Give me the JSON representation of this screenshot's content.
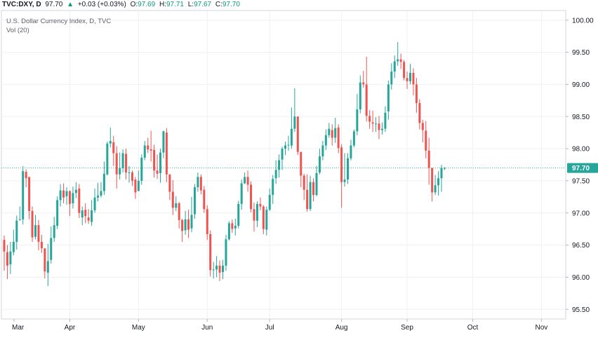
{
  "header": {
    "symbol": "TVC:DXY, D",
    "last": "97.70",
    "arrow": "▲",
    "change": "+0.03 (+0.03%)",
    "o_label": "O:",
    "o_value": "97.69",
    "h_label": "H:",
    "h_value": "97.71",
    "l_label": "L:",
    "l_value": "97.67",
    "c_label": "C:",
    "c_value": "97.70"
  },
  "legend": {
    "title": "U.S. Dollar Currency Index, D, TVC",
    "volume": "Vol (20)"
  },
  "colors": {
    "up": "#26a69a",
    "down": "#ef5350",
    "price_line": "#26a69a",
    "grid": "#eef0f3",
    "text": "#131722"
  },
  "chart_data": {
    "type": "candlestick",
    "title": "U.S. Dollar Currency Index, D, TVC",
    "ylim": [
      95.35,
      100.15
    ],
    "y_ticks": [
      "95.50",
      "96.00",
      "96.50",
      "97.00",
      "97.50",
      "98.00",
      "98.50",
      "99.00",
      "99.50",
      "100.00"
    ],
    "x_ticks": [
      {
        "label": "Mar",
        "index": 0
      },
      {
        "label": "Apr",
        "index": 21
      },
      {
        "label": "May",
        "index": 43
      },
      {
        "label": "Jun",
        "index": 65
      },
      {
        "label": "Jul",
        "index": 85
      },
      {
        "label": "Aug",
        "index": 108
      },
      {
        "label": "Sep",
        "index": 129
      },
      {
        "label": "Oct",
        "index": 150
      },
      {
        "label": "Nov",
        "index": 172
      }
    ],
    "current_price": "97.70",
    "candles": [
      [
        96.58,
        96.4,
        96.65,
        96.1
      ],
      [
        96.39,
        96.18,
        96.5,
        95.97
      ],
      [
        96.2,
        96.4,
        96.55,
        96.05
      ],
      [
        96.39,
        96.55,
        96.74,
        96.34
      ],
      [
        96.55,
        96.88,
        96.96,
        96.43
      ],
      [
        96.89,
        96.9,
        97.1,
        96.88
      ],
      [
        96.9,
        97.65,
        97.73,
        96.82
      ],
      [
        97.64,
        97.54,
        97.68,
        97.4
      ],
      [
        97.56,
        97.03,
        97.12,
        96.9
      ],
      [
        97.03,
        96.62,
        97.1,
        96.55
      ],
      [
        96.63,
        96.81,
        96.97,
        96.59
      ],
      [
        96.81,
        96.55,
        96.89,
        96.42
      ],
      [
        96.55,
        96.45,
        96.66,
        96.38
      ],
      [
        96.45,
        96.09,
        96.24,
        95.98
      ],
      [
        96.07,
        96.25,
        96.52,
        95.86
      ],
      [
        96.27,
        96.61,
        96.79,
        96.21
      ],
      [
        96.61,
        96.81,
        96.94,
        96.55
      ],
      [
        96.8,
        97.2,
        97.26,
        96.75
      ],
      [
        97.2,
        97.35,
        97.45,
        97.1
      ],
      [
        97.35,
        97.24,
        97.46,
        97.15
      ],
      [
        97.26,
        97.34,
        97.4,
        97.13
      ],
      [
        97.34,
        97.14,
        97.35,
        96.95
      ],
      [
        97.15,
        97.31,
        97.41,
        97.07
      ],
      [
        97.31,
        97.36,
        97.48,
        97.23
      ],
      [
        97.38,
        97.0,
        97.45,
        96.92
      ],
      [
        96.93,
        97.04,
        97.1,
        96.81
      ],
      [
        97.05,
        96.95,
        97.15,
        96.84
      ],
      [
        96.93,
        96.88,
        97.06,
        96.83
      ],
      [
        96.86,
        97.04,
        97.2,
        96.8
      ],
      [
        97.04,
        97.24,
        97.38,
        97.0
      ],
      [
        97.24,
        97.27,
        97.47,
        97.18
      ],
      [
        97.27,
        97.34,
        97.48,
        97.24
      ],
      [
        97.34,
        97.61,
        97.8,
        97.28
      ],
      [
        97.6,
        98.08,
        98.11,
        97.58
      ],
      [
        98.08,
        98.12,
        98.33,
        98.02
      ],
      [
        98.1,
        97.93,
        98.2,
        97.73
      ],
      [
        97.93,
        97.6,
        98.04,
        97.38
      ],
      [
        97.6,
        97.7,
        97.94,
        97.52
      ],
      [
        97.7,
        97.93,
        97.99,
        97.63
      ],
      [
        97.92,
        97.63,
        98.0,
        97.52
      ],
      [
        97.63,
        97.63,
        97.73,
        97.47
      ],
      [
        97.63,
        97.5,
        97.66,
        97.42
      ],
      [
        97.52,
        97.32,
        97.56,
        97.22
      ],
      [
        97.34,
        97.5,
        97.66,
        97.34
      ],
      [
        97.5,
        97.86,
        97.91,
        97.44
      ],
      [
        97.86,
        98.05,
        98.12,
        97.82
      ],
      [
        98.05,
        97.99,
        98.17,
        97.93
      ],
      [
        97.99,
        97.97,
        98.28,
        97.8
      ],
      [
        97.98,
        97.66,
        98.06,
        97.55
      ],
      [
        97.66,
        97.61,
        97.91,
        97.53
      ],
      [
        97.62,
        97.94,
        98.0,
        97.47
      ],
      [
        97.94,
        98.27,
        98.28,
        97.85
      ],
      [
        98.25,
        97.6,
        98.32,
        97.48
      ],
      [
        97.6,
        97.33,
        97.6,
        97.2
      ],
      [
        97.33,
        97.08,
        97.51,
        96.97
      ],
      [
        97.08,
        97.15,
        97.26,
        97.03
      ],
      [
        97.15,
        96.89,
        97.17,
        96.76
      ],
      [
        96.89,
        96.72,
        96.91,
        96.55
      ],
      [
        96.73,
        96.9,
        97.03,
        96.66
      ],
      [
        96.9,
        96.74,
        97.05,
        96.61
      ],
      [
        96.76,
        96.97,
        97.25,
        96.7
      ],
      [
        96.98,
        97.4,
        97.45,
        96.91
      ],
      [
        97.4,
        97.56,
        97.63,
        97.33
      ],
      [
        97.56,
        97.35,
        97.6,
        97.29
      ],
      [
        97.36,
        97.06,
        97.42,
        97.0
      ],
      [
        97.06,
        96.67,
        97.12,
        96.58
      ],
      [
        96.67,
        96.11,
        96.73,
        96.01
      ],
      [
        96.11,
        96.12,
        96.24,
        95.98
      ],
      [
        96.12,
        96.18,
        96.33,
        96.0
      ],
      [
        96.18,
        96.07,
        96.26,
        95.94
      ],
      [
        96.08,
        96.18,
        96.27,
        95.97
      ],
      [
        96.18,
        96.59,
        96.66,
        96.1
      ],
      [
        96.59,
        96.84,
        96.87,
        96.57
      ],
      [
        96.84,
        96.75,
        96.9,
        96.69
      ],
      [
        96.76,
        96.8,
        96.91,
        96.65
      ],
      [
        96.8,
        97.14,
        97.19,
        96.76
      ],
      [
        97.14,
        97.46,
        97.52,
        97.05
      ],
      [
        97.46,
        97.56,
        97.63,
        97.45
      ],
      [
        97.56,
        97.44,
        97.66,
        97.33
      ],
      [
        97.44,
        97.06,
        97.49,
        97.01
      ],
      [
        97.06,
        96.88,
        97.16,
        96.71
      ],
      [
        96.88,
        97.14,
        97.18,
        96.78
      ],
      [
        97.14,
        97.1,
        97.24,
        97.04
      ],
      [
        97.1,
        96.75,
        97.12,
        96.67
      ],
      [
        96.74,
        97.05,
        97.1,
        96.65
      ],
      [
        97.05,
        97.28,
        97.38,
        97.03
      ],
      [
        97.28,
        97.53,
        97.59,
        97.14
      ],
      [
        97.54,
        97.67,
        97.82,
        97.45
      ],
      [
        97.67,
        97.82,
        97.91,
        97.55
      ],
      [
        97.83,
        98.0,
        98.03,
        97.67
      ],
      [
        98.0,
        98.05,
        98.11,
        97.9
      ],
      [
        98.05,
        98.06,
        98.2,
        97.97
      ],
      [
        98.05,
        98.31,
        98.64,
        98.0
      ],
      [
        98.31,
        98.5,
        98.94,
        98.26
      ],
      [
        98.5,
        97.95,
        98.5,
        97.9
      ],
      [
        97.95,
        97.58,
        97.95,
        97.4
      ],
      [
        97.58,
        97.36,
        97.61,
        97.2
      ],
      [
        97.36,
        97.06,
        97.6,
        97.02
      ],
      [
        97.06,
        97.48,
        97.58,
        97.03
      ],
      [
        97.48,
        97.28,
        97.54,
        97.18
      ],
      [
        97.28,
        97.62,
        97.73,
        97.26
      ],
      [
        97.63,
        97.88,
        98.0,
        97.6
      ],
      [
        97.88,
        98.05,
        98.12,
        97.82
      ],
      [
        98.05,
        98.21,
        98.3,
        97.98
      ],
      [
        98.21,
        98.31,
        98.4,
        98.17
      ],
      [
        98.29,
        98.17,
        98.38,
        98.05
      ],
      [
        98.17,
        98.32,
        98.48,
        98.09
      ],
      [
        98.33,
        98.01,
        98.38,
        97.93
      ],
      [
        98.02,
        97.48,
        98.07,
        97.08
      ],
      [
        97.48,
        97.52,
        97.93,
        97.41
      ],
      [
        97.52,
        97.85,
        97.93,
        97.45
      ],
      [
        97.85,
        98.05,
        98.14,
        97.82
      ],
      [
        98.05,
        98.27,
        98.3,
        98.02
      ],
      [
        98.27,
        98.61,
        98.85,
        98.21
      ],
      [
        98.61,
        99.03,
        99.14,
        98.55
      ],
      [
        99.03,
        99.0,
        99.21,
        98.95
      ],
      [
        99.0,
        98.51,
        99.43,
        98.42
      ],
      [
        98.51,
        98.42,
        98.6,
        98.31
      ],
      [
        98.41,
        98.39,
        98.59,
        98.26
      ],
      [
        98.39,
        98.39,
        98.49,
        98.26
      ],
      [
        98.39,
        98.29,
        98.51,
        98.15
      ],
      [
        98.29,
        98.31,
        98.41,
        98.22
      ],
      [
        98.31,
        98.56,
        98.66,
        98.26
      ],
      [
        98.58,
        99.0,
        99.06,
        98.45
      ],
      [
        99.0,
        99.2,
        99.33,
        98.92
      ],
      [
        99.2,
        99.36,
        99.45,
        99.1
      ],
      [
        99.36,
        99.39,
        99.66,
        99.29
      ],
      [
        99.39,
        99.35,
        99.48,
        99.24
      ],
      [
        99.35,
        99.1,
        99.38,
        99.06
      ],
      [
        99.1,
        99.05,
        99.2,
        98.93
      ],
      [
        99.05,
        99.18,
        99.32,
        99.0
      ],
      [
        99.18,
        99.0,
        99.25,
        98.83
      ],
      [
        99.0,
        98.71,
        99.1,
        98.56
      ],
      [
        98.71,
        98.4,
        98.77,
        98.3
      ],
      [
        98.4,
        98.29,
        98.45,
        98.1
      ],
      [
        98.28,
        97.97,
        98.43,
        97.85
      ],
      [
        97.97,
        97.7,
        98.17,
        97.44
      ],
      [
        97.7,
        97.32,
        97.7,
        97.18
      ],
      [
        97.32,
        97.43,
        97.59,
        97.28
      ],
      [
        97.43,
        97.54,
        97.65,
        97.27
      ],
      [
        97.54,
        97.7,
        97.75,
        97.33
      ],
      [
        97.69,
        97.7,
        97.71,
        97.67
      ]
    ]
  }
}
